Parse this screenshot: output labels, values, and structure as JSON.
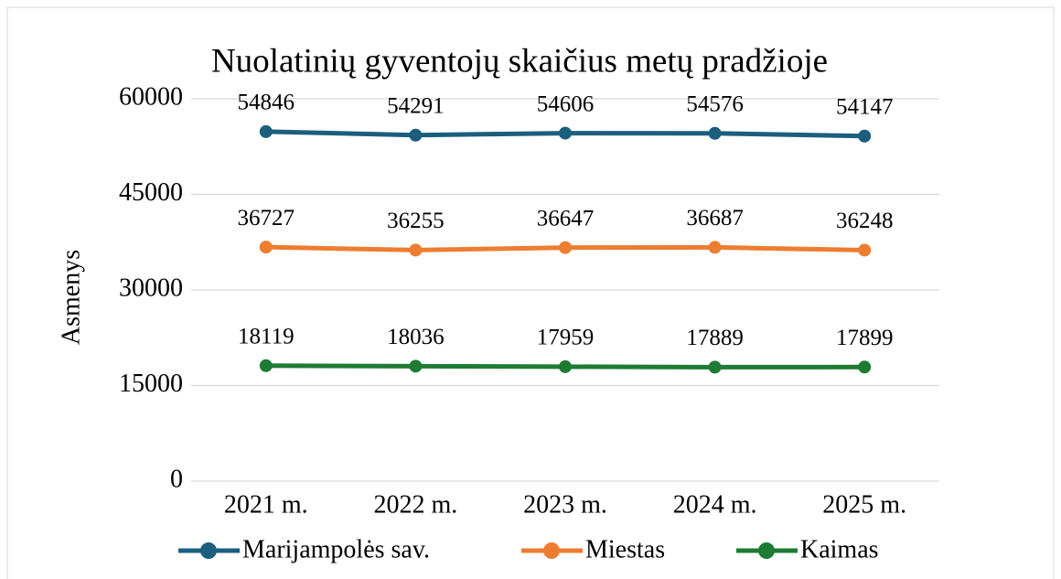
{
  "chart_data": {
    "type": "line",
    "title": "Nuolatinių gyventojų skaičius metų pradžioje",
    "y_label": "Asmenys",
    "categories": [
      "2021 m.",
      "2022 m.",
      "2023 m.",
      "2024 m.",
      "2025 m."
    ],
    "series": [
      {
        "name": "Marijampolės sav.",
        "color": "#1b5e7e",
        "values": [
          54846,
          54291,
          54606,
          54576,
          54147
        ]
      },
      {
        "name": "Miestas",
        "color": "#ed7d31",
        "values": [
          36727,
          36255,
          36647,
          36687,
          36248
        ]
      },
      {
        "name": "Kaimas",
        "color": "#1e7b34",
        "values": [
          18119,
          18036,
          17959,
          17889,
          17899
        ]
      }
    ],
    "ylim": [
      0,
      60000
    ],
    "yticks": [
      0,
      15000,
      30000,
      45000,
      60000
    ],
    "grid": true,
    "legend": "bottom"
  }
}
